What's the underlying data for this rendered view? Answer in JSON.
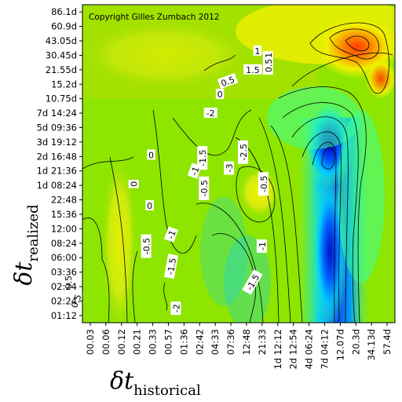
{
  "chart_data": {
    "type": "heatmap",
    "title": "",
    "copyright": "Copyright Gilles Zumbach 2012",
    "xlabel": {
      "symbol": "δt",
      "subscript": "historical"
    },
    "ylabel": {
      "symbol": "δt",
      "subscript": "realized"
    },
    "x_ticks": [
      "00.03",
      "00.06",
      "00.12",
      "00.21",
      "00.33",
      "00.57",
      "01:36",
      "02:42",
      "04:33",
      "07:36",
      "12:48",
      "21:33",
      "1d 12:12",
      "2d 12:54",
      "4d 06:24",
      "7d 04:12",
      "12.07d",
      "20.3d",
      "34.13d",
      "57.4d"
    ],
    "y_ticks": [
      "01:12",
      "02:24",
      "02:24",
      "03:36",
      "06:00",
      "08:24",
      "12:00",
      "15:36",
      "22:48",
      "1d 08:24",
      "1d 21:36",
      "2d 16:48",
      "3d 19:12",
      "5d 09:36",
      "7d 14:24",
      "10.75d",
      "15.2d",
      "21.55d",
      "30.45d",
      "43.05d",
      "60.9d",
      "86.1d"
    ],
    "contour_labels": [
      {
        "text": "0.5",
        "xi": 1.9,
        "yi": 17.8,
        "angle": -90
      },
      {
        "text": "1",
        "xi": 1.9,
        "yi": 18.5,
        "angle": -90
      },
      {
        "text": "1.5",
        "xi": 0.9,
        "yi": 17.5,
        "angle": 0
      },
      {
        "text": "1",
        "xi": 1.2,
        "yi": 18.8,
        "angle": 0
      },
      {
        "text": "0.5",
        "xi": -0.7,
        "yi": 16.7,
        "angle": -20
      },
      {
        "text": "0",
        "xi": -1.2,
        "yi": 15.8,
        "angle": 0
      },
      {
        "text": "-2",
        "xi": -1.8,
        "yi": 14.5,
        "angle": 0
      },
      {
        "text": "-2.5",
        "xi": 0.3,
        "yi": 11.8,
        "angle": -90
      },
      {
        "text": "-3",
        "xi": -0.6,
        "yi": 10.7,
        "angle": -90
      },
      {
        "text": "-1.5",
        "xi": -2.3,
        "yi": 11.4,
        "angle": -90
      },
      {
        "text": "-1",
        "xi": -2.8,
        "yi": 10.5,
        "angle": -70
      },
      {
        "text": "-0.5",
        "xi": -2.2,
        "yi": 9.3,
        "angle": -90
      },
      {
        "text": "-0.5",
        "xi": 1.6,
        "yi": 9.6,
        "angle": -90
      },
      {
        "text": "0",
        "xi": -5.6,
        "yi": 11.6,
        "angle": 0
      },
      {
        "text": "0",
        "xi": -6.7,
        "yi": 9.6,
        "angle": -90
      },
      {
        "text": "0",
        "xi": -5.7,
        "yi": 8.1,
        "angle": 0
      },
      {
        "text": "-1",
        "xi": -4.3,
        "yi": 6.1,
        "angle": -70
      },
      {
        "text": "-0.5",
        "xi": -5.9,
        "yi": 5.3,
        "angle": -90
      },
      {
        "text": "-1.5",
        "xi": -4.3,
        "yi": 3.9,
        "angle": -80
      },
      {
        "text": "-2",
        "xi": -4.0,
        "yi": 1.0,
        "angle": -90
      },
      {
        "text": "-1",
        "xi": 1.5,
        "yi": 5.3,
        "angle": -90
      },
      {
        "text": "-1.5",
        "xi": 0.9,
        "yi": 2.8,
        "angle": -60
      },
      {
        "text": "0.5",
        "xi": -10.9,
        "yi": 2.8,
        "angle": -90
      },
      {
        "text": "0.5",
        "xi": -10.4,
        "yi": 1.5,
        "angle": -70
      }
    ],
    "colormap": [
      "#0000b4",
      "#0064ff",
      "#00d2ff",
      "#3cff96",
      "#80e800",
      "#a8e000",
      "#f0f000",
      "#ff9c00",
      "#ff3c00"
    ],
    "grid": false,
    "legend": "none"
  }
}
